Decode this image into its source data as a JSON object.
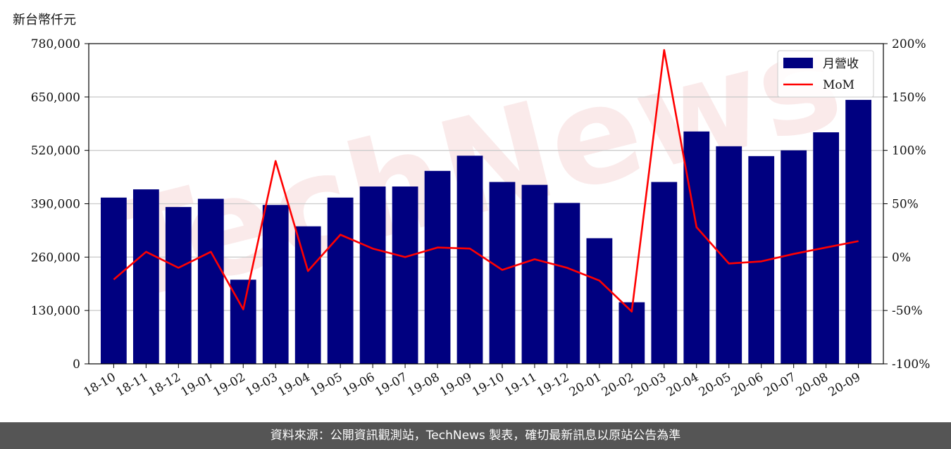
{
  "unit_label": "新台幣仟元",
  "footer": "資料來源：公開資訊觀測站，TechNews 製表，確切最新訊息以原站公告為準",
  "watermark": "TechNews",
  "colors": {
    "bar": "#000080",
    "line": "#ff0000",
    "grid": "#cccccc",
    "footer_bg": "#555555"
  },
  "chart_data": {
    "type": "bar",
    "categories": [
      "18-10",
      "18-11",
      "18-12",
      "19-01",
      "19-02",
      "19-03",
      "19-04",
      "19-05",
      "19-06",
      "19-07",
      "19-08",
      "19-09",
      "19-10",
      "19-11",
      "19-12",
      "20-01",
      "20-02",
      "20-03",
      "20-04",
      "20-05",
      "20-06",
      "20-07",
      "20-08",
      "20-09"
    ],
    "series": [
      {
        "name": "月營收",
        "type": "bar",
        "axis": "left",
        "values": [
          405000,
          425000,
          382000,
          402000,
          205000,
          387000,
          335000,
          405000,
          432000,
          432000,
          470000,
          507000,
          443000,
          436000,
          392000,
          306000,
          150000,
          443000,
          566000,
          530000,
          506000,
          520000,
          564000,
          643000
        ]
      },
      {
        "name": "MoM",
        "type": "line",
        "axis": "right",
        "values": [
          -21,
          5,
          -10,
          5,
          -49,
          90,
          -13,
          21,
          8,
          0,
          9,
          8,
          -12,
          -2,
          -10,
          -22,
          -51,
          194,
          28,
          -6,
          -4,
          3,
          9,
          15
        ]
      }
    ],
    "y_left": {
      "ylim": [
        0,
        780000
      ],
      "ticks": [
        "0",
        "130,000",
        "260,000",
        "390,000",
        "520,000",
        "650,000",
        "780,000"
      ],
      "tick_values": [
        0,
        130000,
        260000,
        390000,
        520000,
        650000,
        780000
      ]
    },
    "y_right": {
      "ylim": [
        -100,
        200
      ],
      "ticks": [
        "-100%",
        "-50%",
        "0%",
        "50%",
        "100%",
        "150%",
        "200%"
      ],
      "tick_values": [
        -100,
        -50,
        0,
        50,
        100,
        150,
        200
      ]
    },
    "legend": {
      "placement": "top-right",
      "entries": [
        "月營收",
        "MoM"
      ]
    },
    "grid": "horizontal"
  }
}
